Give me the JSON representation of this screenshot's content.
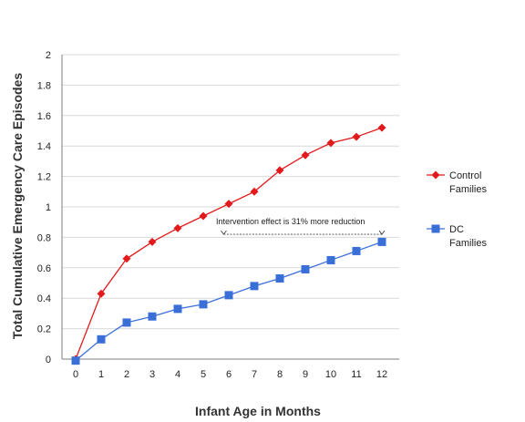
{
  "chart_data": {
    "type": "line",
    "x": [
      0,
      1,
      2,
      3,
      4,
      5,
      6,
      7,
      8,
      9,
      10,
      11,
      12
    ],
    "xlabel": "Infant Age in Months",
    "ylabel": "Total Cumulative Emergency Care Episodes",
    "ylim": [
      0,
      2
    ],
    "yticks": [
      "0",
      "0.2",
      "0.4",
      "0.6",
      "0.8",
      "1",
      "1.2",
      "1.4",
      "1.6",
      "1.8",
      "2"
    ],
    "xticks": [
      "0",
      "1",
      "2",
      "3",
      "4",
      "5",
      "6",
      "7",
      "8",
      "9",
      "10",
      "11",
      "12"
    ],
    "grid": "horizontal",
    "legend_position": "right",
    "series": [
      {
        "name": "Control Families",
        "name_lines": [
          "Control",
          "Families"
        ],
        "color": "#e31a1c",
        "marker": "diamond",
        "values": [
          0,
          0.43,
          0.66,
          0.77,
          0.86,
          0.94,
          1.02,
          1.1,
          1.24,
          1.34,
          1.42,
          1.46,
          1.52
        ]
      },
      {
        "name": "DC Families",
        "name_lines": [
          "DC",
          "Families"
        ],
        "color": "#3b6fd8",
        "marker": "square",
        "values": [
          -0.01,
          0.13,
          0.24,
          0.28,
          0.33,
          0.36,
          0.42,
          0.48,
          0.53,
          0.59,
          0.65,
          0.71,
          0.77
        ]
      }
    ],
    "annotation": {
      "text": "Intervention effect is 31% more reduction",
      "from_x": 5.8,
      "to_x": 12,
      "y": 0.82
    }
  }
}
